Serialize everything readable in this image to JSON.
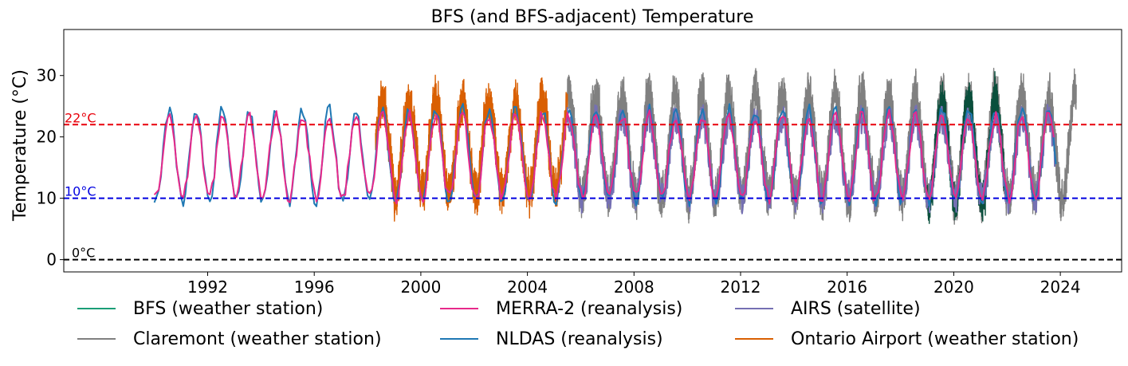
{
  "chart_data": {
    "type": "line",
    "title": "BFS (and BFS-adjacent) Temperature",
    "xlabel": "",
    "ylabel": "Temperature (°C)",
    "xlim": [
      1986.6,
      2026.3
    ],
    "ylim": [
      -2,
      37.5
    ],
    "x_ticks": [
      {
        "value": 1992,
        "label": "1992"
      },
      {
        "value": 1996,
        "label": "1996"
      },
      {
        "value": 2000,
        "label": "2000"
      },
      {
        "value": 2004,
        "label": "2004"
      },
      {
        "value": 2008,
        "label": "2008"
      },
      {
        "value": 2012,
        "label": "2012"
      },
      {
        "value": 2016,
        "label": "2016"
      },
      {
        "value": 2020,
        "label": "2020"
      },
      {
        "value": 2024,
        "label": "2024"
      }
    ],
    "y_ticks": [
      {
        "value": 0,
        "label": "0"
      },
      {
        "value": 10,
        "label": "10"
      },
      {
        "value": 20,
        "label": "20"
      },
      {
        "value": 30,
        "label": "30"
      }
    ],
    "reference_lines": [
      {
        "value": 22,
        "label": "22°C",
        "color": "#e8000b"
      },
      {
        "value": 10,
        "label": "10°C",
        "color": "#0000e0"
      },
      {
        "value": 0,
        "label": "0°C",
        "color": "#000000"
      }
    ],
    "series": [
      {
        "name": "Claremont (weather station)",
        "color": "#808080",
        "x_range": [
          2005.5,
          2024.6
        ],
        "mean": 18.5,
        "amplitude": 8.5,
        "noise": 6.0,
        "kind": "daily"
      },
      {
        "name": "BFS (weather station)",
        "color": "#0a4f3c",
        "x_range": [
          2019.0,
          2021.9
        ],
        "mean": 17.5,
        "amplitude": 8.5,
        "noise": 5.5,
        "kind": "daily"
      },
      {
        "name": "Ontario Airport (weather station)",
        "color": "#d95f02",
        "x_range": [
          1998.3,
          2005.5
        ],
        "mean": 18.5,
        "amplitude": 7.5,
        "noise": 6.0,
        "kind": "daily"
      },
      {
        "name": "AIRS (satellite)",
        "color": "#7570b3",
        "x_range": [
          2005.5,
          2023.8
        ],
        "mean": 16.5,
        "amplitude": 6.5,
        "noise": 2.5,
        "kind": "weekly"
      },
      {
        "name": "NLDAS (reanalysis)",
        "color": "#1f78b4",
        "x_range": [
          1990.0,
          2023.9
        ],
        "mean": 17.0,
        "amplitude": 7.5,
        "noise": 1.0,
        "kind": "monthly"
      },
      {
        "name": "MERRA-2 (reanalysis)",
        "color": "#e7298a",
        "x_range": [
          1990.0,
          2023.8
        ],
        "mean": 16.8,
        "amplitude": 6.8,
        "noise": 1.0,
        "kind": "monthly"
      }
    ],
    "legend": {
      "placement": "bottom",
      "columns": [
        [
          "BFS (weather station)",
          "Claremont (weather station)"
        ],
        [
          "MERRA-2 (reanalysis)",
          "NLDAS (reanalysis)"
        ],
        [
          "AIRS (satellite)",
          "Ontario Airport (weather station)"
        ]
      ],
      "colors": {
        "BFS (weather station)": "#1b9e77",
        "Claremont (weather station)": "#808080",
        "MERRA-2 (reanalysis)": "#e7298a",
        "NLDAS (reanalysis)": "#1f78b4",
        "AIRS (satellite)": "#7570b3",
        "Ontario Airport (weather station)": "#d95f02"
      }
    }
  }
}
